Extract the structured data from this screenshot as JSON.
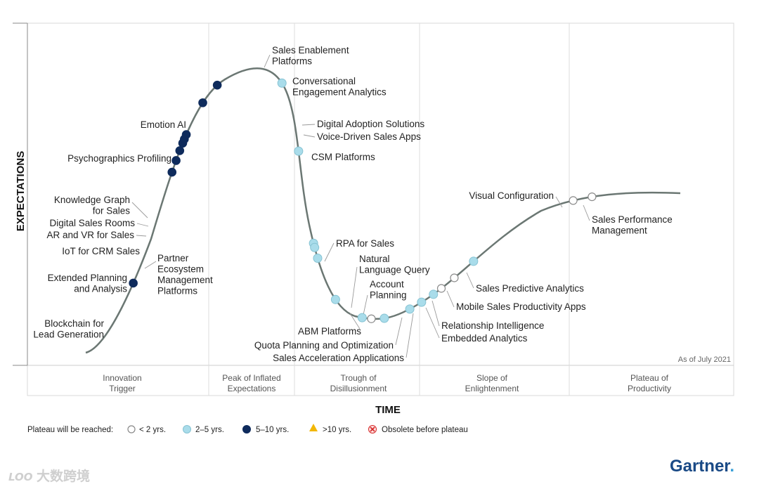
{
  "chart_data": {
    "type": "hype_cycle",
    "title": "",
    "xlabel": "TIME",
    "ylabel": "EXPECTATIONS",
    "as_of": "As of July 2021",
    "phases": [
      [
        "Innovation",
        "Trigger"
      ],
      [
        "Peak of Inflated",
        "Expectations"
      ],
      [
        "Trough of",
        "Disillusionment"
      ],
      [
        "Slope of",
        "Enlightenment"
      ],
      [
        "Plateau of",
        "Productivity"
      ]
    ],
    "legend": {
      "title": "Plateau will be reached:",
      "items": [
        {
          "symbol": "open-circle",
          "label": "< 2 yrs."
        },
        {
          "symbol": "light-circle",
          "label": "2–5 yrs."
        },
        {
          "symbol": "dark-circle",
          "label": "5–10 yrs."
        },
        {
          "symbol": "triangle",
          "label": ">10 yrs."
        },
        {
          "symbol": "x-circle",
          "label": "Obsolete before plateau"
        }
      ]
    },
    "technologies": [
      {
        "name": "Blockchain for Lead Generation",
        "lines": [
          "Blockchain for",
          "Lead Generation"
        ],
        "time": 0.08,
        "years": "5-10"
      },
      {
        "name": "Extended Planning and Analysis",
        "lines": [
          "Extended Planning",
          "and Analysis"
        ],
        "time": 0.145,
        "years": "5-10"
      },
      {
        "name": "Partner Ecosystem Management Platforms",
        "lines": [
          "Partner",
          "Ecosystem",
          "Management",
          "Platforms"
        ],
        "time": 0.152,
        "years": "5-10"
      },
      {
        "name": "IoT for CRM Sales",
        "lines": [
          "IoT for CRM Sales"
        ],
        "time": 0.158,
        "years": "5-10"
      },
      {
        "name": "AR and VR for Sales",
        "lines": [
          "AR and VR for Sales"
        ],
        "time": 0.163,
        "years": "5-10"
      },
      {
        "name": "Digital Sales Rooms",
        "lines": [
          "Digital Sales Rooms"
        ],
        "time": 0.166,
        "years": "5-10"
      },
      {
        "name": "Knowledge Graph for Sales",
        "lines": [
          "Knowledge Graph",
          "for Sales"
        ],
        "time": 0.169,
        "years": "5-10"
      },
      {
        "name": "Psychographics Profiling",
        "lines": [
          "Psychographics Profiling"
        ],
        "time": 0.197,
        "years": "5-10"
      },
      {
        "name": "Emotion AI",
        "lines": [
          "Emotion AI"
        ],
        "time": 0.221,
        "years": "5-10"
      },
      {
        "name": "Sales Enablement Platforms",
        "lines": [
          "Sales Enablement",
          "Platforms"
        ],
        "time": 0.33,
        "years": "2-5"
      },
      {
        "name": "Conversational Engagement Analytics",
        "lines": [
          "Conversational",
          "Engagement Analytics"
        ],
        "time": 0.358,
        "years": "2-5"
      },
      {
        "name": "Digital Adoption Solutions",
        "lines": [
          "Digital Adoption Solutions"
        ],
        "time": 0.383,
        "years": "2-5"
      },
      {
        "name": "Voice-Driven Sales Apps",
        "lines": [
          "Voice-Driven Sales Apps"
        ],
        "time": 0.385,
        "years": "2-5"
      },
      {
        "name": "CSM Platforms",
        "lines": [
          "CSM Platforms"
        ],
        "time": 0.39,
        "years": "2-5"
      },
      {
        "name": "RPA for Sales",
        "lines": [
          "RPA for Sales"
        ],
        "time": 0.42,
        "years": "2-5"
      },
      {
        "name": "ABM Platforms",
        "lines": [
          "ABM Platforms"
        ],
        "time": 0.465,
        "years": "2-5"
      },
      {
        "name": "Natural Language Query",
        "lines": [
          "Natural",
          "Language Query"
        ],
        "time": 0.48,
        "years": "<2"
      },
      {
        "name": "Account Planning",
        "lines": [
          "Account",
          "Planning"
        ],
        "time": 0.502,
        "years": "2-5"
      },
      {
        "name": "Quota Planning and Optimization",
        "lines": [
          "Quota Planning and Optimization"
        ],
        "time": 0.545,
        "years": "2-5"
      },
      {
        "name": "Sales Acceleration Applications",
        "lines": [
          "Sales Acceleration Applications"
        ],
        "time": 0.565,
        "years": "2-5"
      },
      {
        "name": "Embedded Analytics",
        "lines": [
          "Embedded Analytics"
        ],
        "time": 0.585,
        "years": "2-5"
      },
      {
        "name": "Relationship Intelligence",
        "lines": [
          "Relationship Intelligence"
        ],
        "time": 0.598,
        "years": "<2"
      },
      {
        "name": "Mobile Sales Productivity Apps",
        "lines": [
          "Mobile Sales Productivity Apps"
        ],
        "time": 0.62,
        "years": "<2"
      },
      {
        "name": "Sales Predictive Analytics",
        "lines": [
          "Sales Predictive Analytics"
        ],
        "time": 0.652,
        "years": "2-5"
      },
      {
        "name": "Visual Configuration",
        "lines": [
          "Visual Configuration"
        ],
        "time": 0.82,
        "years": "<2"
      },
      {
        "name": "Sales Performance Management",
        "lines": [
          "Sales Performance",
          "Management"
        ],
        "time": 0.852,
        "years": "<2"
      }
    ]
  },
  "brand": "Gartner",
  "brand_mark": ".",
  "watermark": "大数跨境",
  "watermark_logo": "LOO"
}
